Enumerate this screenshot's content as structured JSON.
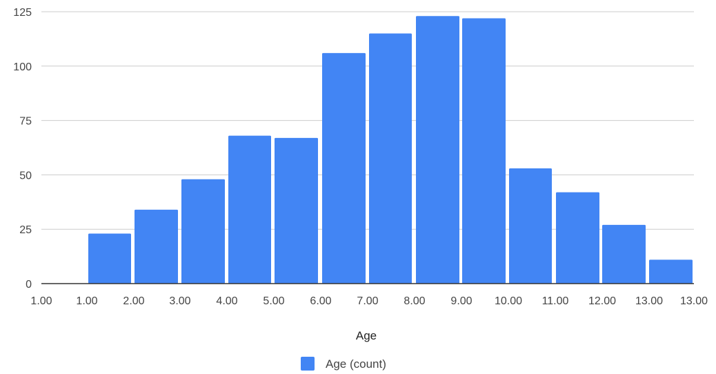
{
  "chart_data": {
    "type": "bar",
    "title": "",
    "xlabel": "Age",
    "ylabel": "",
    "ylim": [
      0,
      125
    ],
    "yticks": [
      "0",
      "25",
      "50",
      "75",
      "100",
      "125"
    ],
    "xticks": [
      "1.00",
      "1.00",
      "2.00",
      "3.00",
      "4.00",
      "5.00",
      "6.00",
      "7.00",
      "8.00",
      "9.00",
      "10.00",
      "11.00",
      "12.00",
      "13.00",
      "13.00"
    ],
    "bins": [
      "1.00–2.00",
      "2.00–3.00",
      "3.00–4.00",
      "4.00–5.00",
      "5.00–6.00",
      "6.00–7.00",
      "7.00–8.00",
      "8.00–9.00",
      "9.00–10.00",
      "10.00–11.00",
      "11.00–12.00",
      "12.00–13.00",
      "13.00"
    ],
    "series": [
      {
        "name": "Age (count)",
        "values": [
          23,
          34,
          48,
          68,
          67,
          106,
          115,
          123,
          122,
          53,
          42,
          27,
          11
        ]
      }
    ],
    "grid": true,
    "legend_position": "bottom",
    "colors": {
      "bar": "#4285f4",
      "grid": "#cccccc",
      "axis": "#333333"
    }
  }
}
